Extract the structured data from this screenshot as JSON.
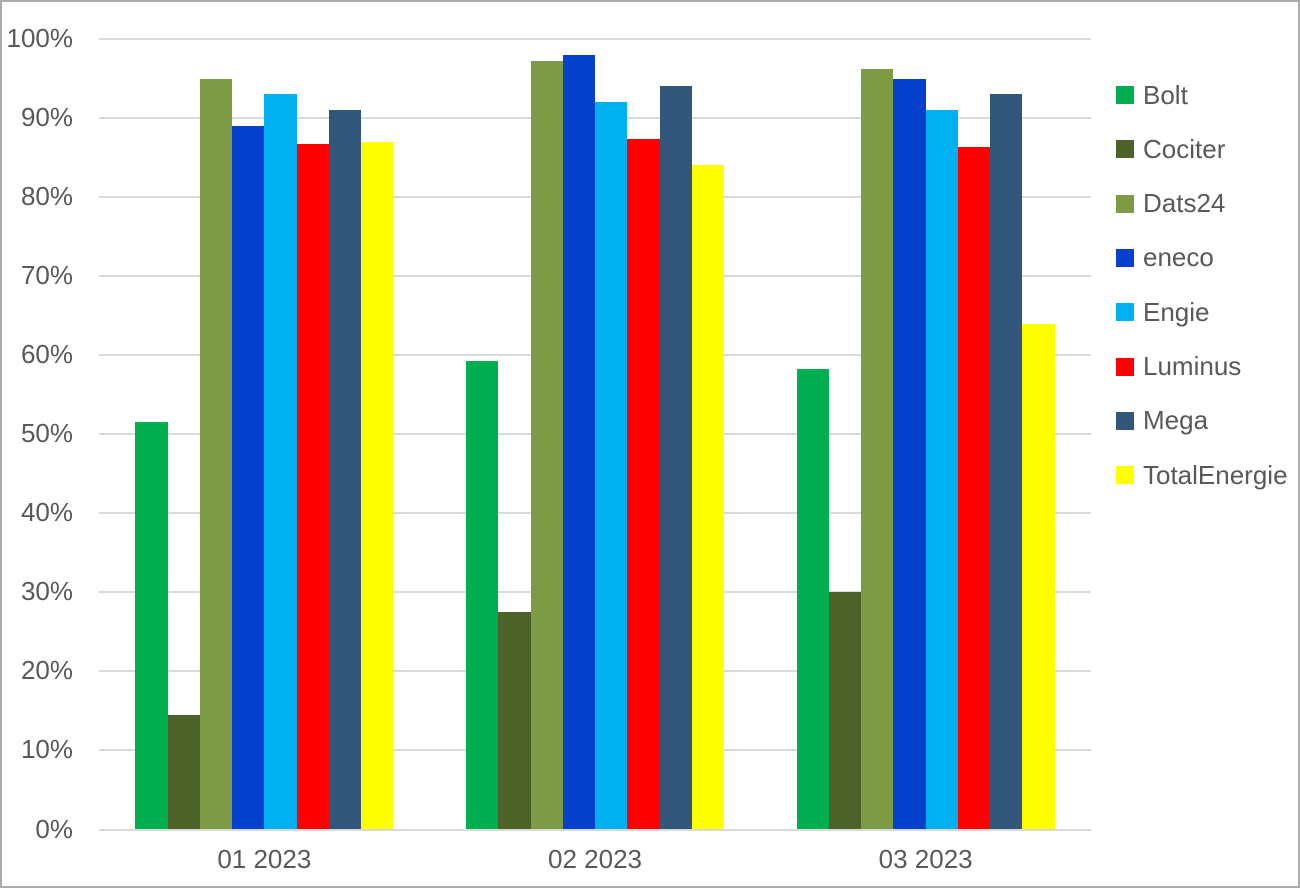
{
  "chart_data": {
    "type": "bar",
    "title": "",
    "categories": [
      "01 2023",
      "02 2023",
      "03 2023"
    ],
    "series": [
      {
        "name": "Bolt",
        "color": "#00ad4f",
        "values": [
          51.5,
          59.3,
          58.2
        ]
      },
      {
        "name": "Cociter",
        "color": "#4d6228",
        "values": [
          14.5,
          27.5,
          30.0
        ]
      },
      {
        "name": "Dats24",
        "color": "#7d9b44",
        "values": [
          95.0,
          97.2,
          96.2
        ]
      },
      {
        "name": "eneco",
        "color": "#0541cc",
        "values": [
          89.0,
          98.0,
          95.0
        ]
      },
      {
        "name": "Engie",
        "color": "#00b0f0",
        "values": [
          93.0,
          92.0,
          91.0
        ]
      },
      {
        "name": "Luminus",
        "color": "#fe0000",
        "values": [
          86.7,
          87.4,
          86.3
        ]
      },
      {
        "name": "Mega",
        "color": "#33567b",
        "values": [
          91.0,
          94.0,
          93.0
        ]
      },
      {
        "name": "TotalEnergie",
        "color": "#ffff00",
        "values": [
          87.0,
          84.0,
          64.0
        ]
      }
    ],
    "ylim": [
      0,
      100
    ],
    "ytick_step": 10,
    "ytick_labels": [
      "0%",
      "10%",
      "20%",
      "30%",
      "40%",
      "50%",
      "60%",
      "70%",
      "80%",
      "90%",
      "100%"
    ],
    "xlabel": "",
    "ylabel": "",
    "grid": true,
    "legend_position": "right",
    "colors": {
      "gridline": "#d9d9d9",
      "axis_text": "#595959",
      "background": "#ffffff",
      "frame_border": "#ababab"
    }
  }
}
